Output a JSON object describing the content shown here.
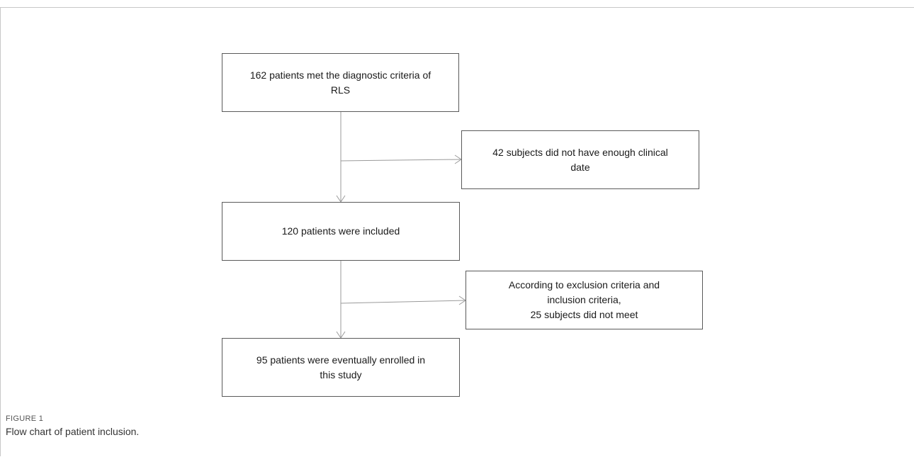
{
  "flowchart": {
    "nodes": [
      {
        "id": "n1",
        "text": "162 patients met the diagnostic criteria of\nRLS"
      },
      {
        "id": "n2",
        "text": "42 subjects did not have enough clinical\ndate"
      },
      {
        "id": "n3",
        "text": "120 patients were included"
      },
      {
        "id": "n4",
        "text": "According to exclusion criteria and\ninclusion criteria,\n25 subjects did not meet"
      },
      {
        "id": "n5",
        "text": "95 patients were eventually enrolled in\nthis study"
      }
    ],
    "edges": [
      {
        "from": "n1",
        "to": "n3"
      },
      {
        "from": "n1",
        "to": "n2"
      },
      {
        "from": "n3",
        "to": "n5"
      },
      {
        "from": "n3",
        "to": "n4"
      }
    ]
  },
  "caption": {
    "label": "FIGURE 1",
    "text": "Flow chart of patient inclusion."
  },
  "colors": {
    "box_border": "#5a5a5a",
    "arrow": "#9a9a9a",
    "frame": "#c8c8c8"
  }
}
